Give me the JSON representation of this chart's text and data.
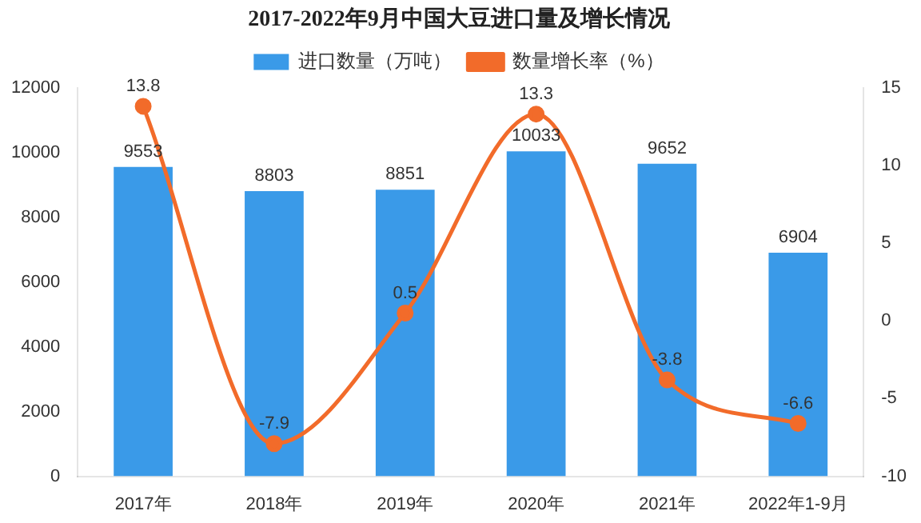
{
  "chart_data": {
    "type": "bar",
    "title": "2017-2022年9月中国大豆进口量及增长情况",
    "categories": [
      "2017年",
      "2018年",
      "2019年",
      "2020年",
      "2021年",
      "2022年1-9月"
    ],
    "series": [
      {
        "name": "进口数量（万吨）",
        "color": "#3a9ae8",
        "values": [
          9553,
          8803,
          8851,
          10033,
          9652,
          6904
        ]
      },
      {
        "name": "数量增长率（%）",
        "type": "line",
        "axis": "y2",
        "color": "#f26b2a",
        "values": [
          13.8,
          -7.9,
          0.5,
          13.3,
          -3.8,
          -6.6
        ]
      }
    ],
    "ylim": [
      0,
      12000
    ],
    "yticks": [
      0,
      2000,
      4000,
      6000,
      8000,
      10000,
      12000
    ],
    "y2lim": [
      -10,
      15
    ],
    "y2ticks": [
      -10,
      -5,
      0,
      5,
      10,
      15
    ],
    "legend": "top",
    "marker": "circle",
    "data_labels": true
  }
}
